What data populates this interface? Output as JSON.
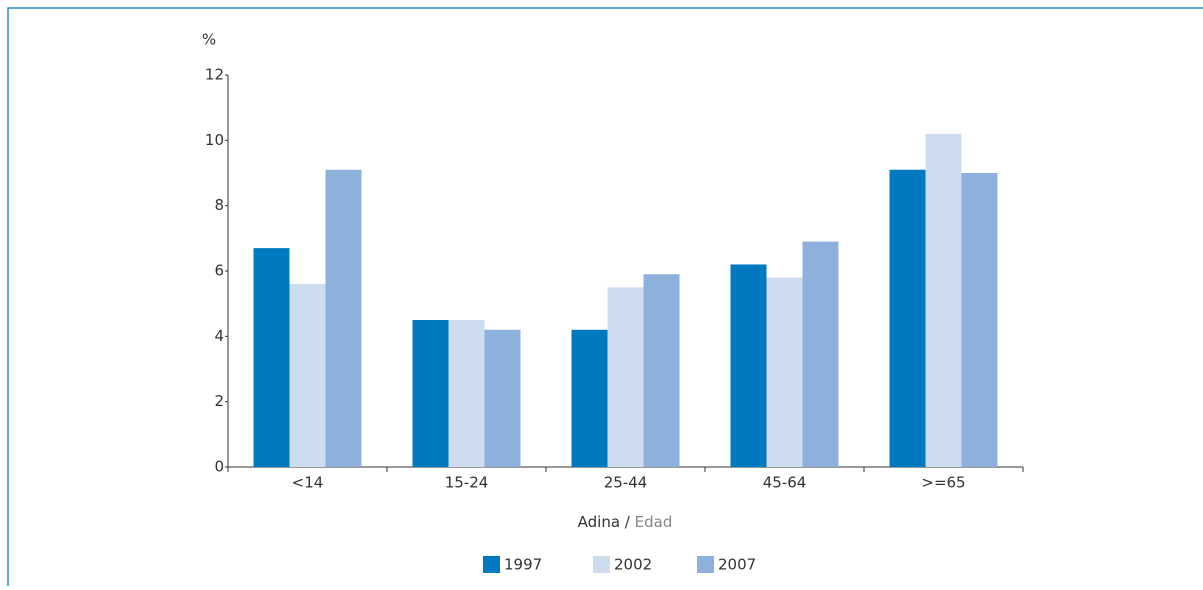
{
  "chart_data": {
    "type": "bar",
    "unit_label": "%",
    "x_label": [
      "Adina /",
      "Edad"
    ],
    "categories": [
      "<14",
      "15-24",
      "25-44",
      "45-64",
      ">=65"
    ],
    "series": [
      {
        "name": "1997",
        "color": "#0079c1",
        "values": [
          6.7,
          4.5,
          4.2,
          6.2,
          9.1
        ]
      },
      {
        "name": "2002",
        "color": "#cddcee",
        "values": [
          5.6,
          4.5,
          5.5,
          5.8,
          10.2
        ]
      },
      {
        "name": "2007",
        "color": "#8eb0dd",
        "values": [
          9.1,
          4.2,
          5.9,
          6.9,
          9.0
        ]
      }
    ],
    "ylim": [
      0,
      12
    ],
    "yticks": [
      0,
      2,
      4,
      6,
      8,
      10,
      12
    ],
    "grid": false
  }
}
